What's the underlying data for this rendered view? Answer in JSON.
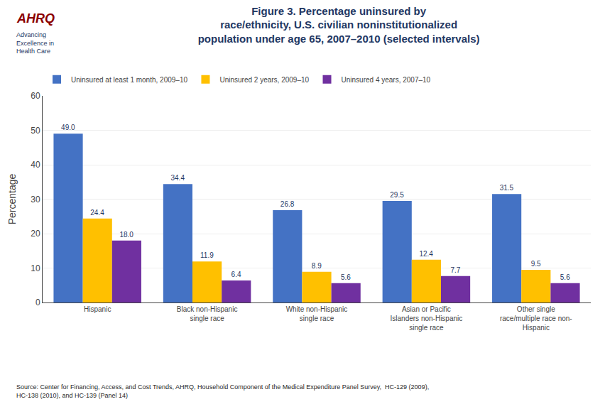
{
  "chart_data": {
    "type": "bar",
    "title": "Figure 3. Percentage uninsured by\nrace/ethnicity, U.S. civilian noninstitutionalized\npopulation under age 65, 2007–2010 (selected intervals)",
    "categories": [
      "Hispanic",
      "Black non-Hispanic\nsingle race",
      "White non-Hispanic\nsingle race",
      "Asian or Pacific\nIslanders non-Hispanic\nsingle race",
      "Other single\nrace/multiple race non-\nHispanic"
    ],
    "series": [
      {
        "name": "Uninsured at least 1 month, 2009–10",
        "color": "#4472C4",
        "values": [
          49.0,
          34.4,
          26.8,
          29.5,
          31.5
        ],
        "value_labels": [
          "49.0",
          "34.4",
          "26.8",
          "29.5",
          "31.5"
        ]
      },
      {
        "name": "Uninsured 2 years, 2009–10",
        "color": "#FFC000",
        "values": [
          24.4,
          11.9,
          8.9,
          12.4,
          9.5
        ],
        "value_labels": [
          "24.4",
          "11.9",
          "8.9",
          "12.4",
          "9.5"
        ]
      },
      {
        "name": "Uninsured 4 years, 2007–10",
        "color": "#7030A0",
        "values": [
          18.0,
          6.4,
          5.6,
          7.7,
          5.6
        ],
        "value_labels": [
          "18.0",
          "6.4",
          "5.6",
          "7.7",
          "5.6"
        ]
      }
    ],
    "ylabel": "Percentage",
    "ylim": [
      0,
      60
    ],
    "yticks": [
      0,
      10,
      20,
      30,
      40,
      50,
      60
    ],
    "grid": true,
    "legend": "upper left",
    "data_labels": true,
    "annotations": [
      "AHRQ",
      "Advancing\nExcellence in\nHealth Care"
    ],
    "source": "Source: Center for Financing, Access, and Cost Trends, AHRQ, Household Component of the Medical Expenditure Panel Survey,  HC-129 (2009),\nHC-138 (2010), and HC-139 (Panel 14)"
  }
}
